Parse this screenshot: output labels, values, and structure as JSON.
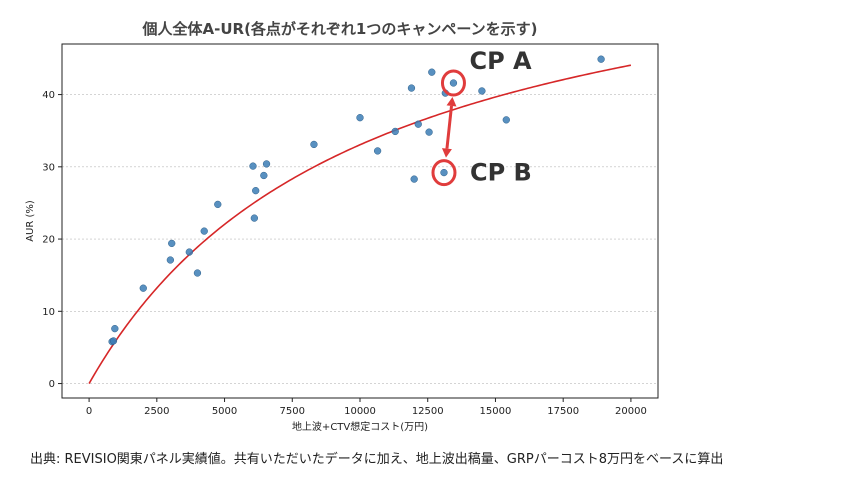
{
  "chart_data": {
    "type": "scatter",
    "title": "個人全体A-UR(各点がそれぞれ1つのキャンペーンを示す)",
    "xlabel": "地上波+CTV想定コスト(万円)",
    "ylabel": "AUR (%)",
    "xlim": [
      -1000,
      21000
    ],
    "ylim": [
      -2,
      47
    ],
    "xticks": [
      0,
      2500,
      5000,
      7500,
      10000,
      12500,
      15000,
      17500,
      20000
    ],
    "yticks": [
      0,
      10,
      20,
      30,
      40
    ],
    "grid": "horizontal dashed",
    "points": [
      {
        "x": 850,
        "y": 5.8
      },
      {
        "x": 900,
        "y": 5.9
      },
      {
        "x": 950,
        "y": 7.6
      },
      {
        "x": 2000,
        "y": 13.2
      },
      {
        "x": 3000,
        "y": 17.1
      },
      {
        "x": 3050,
        "y": 19.4
      },
      {
        "x": 3700,
        "y": 18.2
      },
      {
        "x": 4000,
        "y": 15.3
      },
      {
        "x": 4250,
        "y": 21.1
      },
      {
        "x": 4750,
        "y": 24.8
      },
      {
        "x": 6050,
        "y": 30.1
      },
      {
        "x": 6100,
        "y": 22.9
      },
      {
        "x": 6150,
        "y": 26.7
      },
      {
        "x": 6450,
        "y": 28.8
      },
      {
        "x": 6550,
        "y": 30.4
      },
      {
        "x": 8300,
        "y": 33.1
      },
      {
        "x": 10000,
        "y": 36.8
      },
      {
        "x": 10650,
        "y": 32.2
      },
      {
        "x": 11300,
        "y": 34.9
      },
      {
        "x": 11900,
        "y": 40.9
      },
      {
        "x": 12000,
        "y": 28.3
      },
      {
        "x": 12150,
        "y": 35.9
      },
      {
        "x": 12550,
        "y": 34.8
      },
      {
        "x": 12650,
        "y": 43.1
      },
      {
        "x": 13100,
        "y": 29.2
      },
      {
        "x": 13150,
        "y": 40.2
      },
      {
        "x": 13450,
        "y": 41.6
      },
      {
        "x": 14500,
        "y": 40.5
      },
      {
        "x": 15400,
        "y": 36.5
      },
      {
        "x": 18900,
        "y": 44.9
      }
    ],
    "fit": {
      "type": "curve",
      "color": "#d62728",
      "x_range": [
        0,
        20000
      ],
      "a": 66.1,
      "b": 10000
    },
    "annotations": [
      {
        "label": "CP A",
        "x": 13450,
        "y": 41.6
      },
      {
        "label": "CP B",
        "x": 13100,
        "y": 29.2
      }
    ],
    "colors": {
      "points": "#3b7db5",
      "fit": "#d62728",
      "highlight": "#e03c3c"
    }
  },
  "source_note": "出典: REVISIO関東パネル実績値。共有いただいたデータに加え、地上波出稿量、GRPパーコスト8万円をベースに算出"
}
